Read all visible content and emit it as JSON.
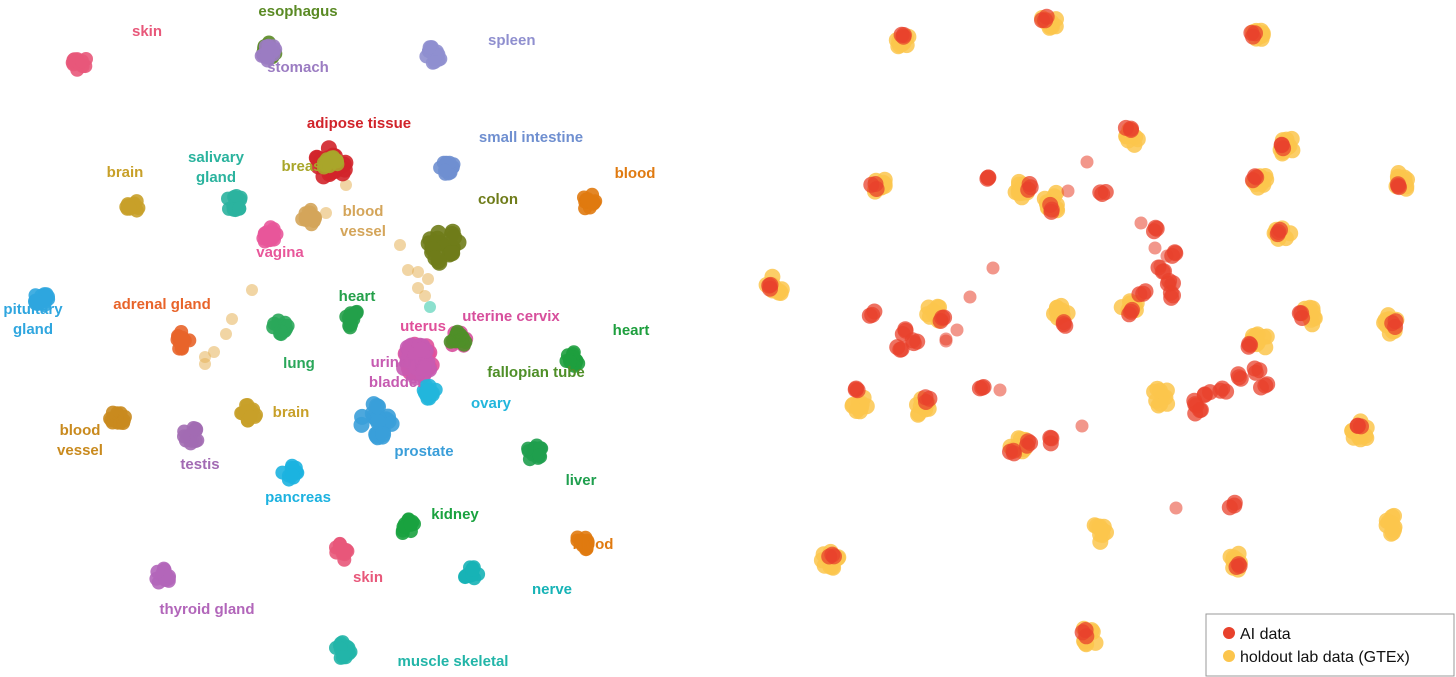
{
  "colors": {
    "ai": "#e8412c",
    "gtex": "#fcc54c"
  },
  "legend": {
    "items": [
      {
        "label": "AI data",
        "color": "#e8412c"
      },
      {
        "label": "holdout lab data (GTEx)",
        "color": "#fcc54c"
      }
    ]
  },
  "chart_data": [
    {
      "type": "scatter",
      "title": "",
      "xlabel": "",
      "ylabel": "",
      "axes_visible": false,
      "grid": false,
      "clusters": [
        {
          "name": "skin",
          "color": "#e8587a",
          "x": 0.098,
          "y": 0.917
        },
        {
          "name": "esophagus",
          "color": "#5a8a24",
          "x": 0.39,
          "y": 0.936
        },
        {
          "name": "stomach",
          "color": "#9b7cc2",
          "x": 0.39,
          "y": 0.931
        },
        {
          "name": "spleen",
          "color": "#8f8fcf",
          "x": 0.644,
          "y": 0.929
        },
        {
          "name": "adipose tissue",
          "color": "#d1232a",
          "x": 0.487,
          "y": 0.767
        },
        {
          "name": "breast",
          "color": "#a9a62a",
          "x": 0.487,
          "y": 0.762
        },
        {
          "name": "small intestine",
          "color": "#6f8fd0",
          "x": 0.666,
          "y": 0.761
        },
        {
          "name": "brain",
          "color": "#c8a029",
          "x": 0.18,
          "y": 0.702
        },
        {
          "name": "salivary gland",
          "color": "#2bb39e",
          "x": 0.338,
          "y": 0.705
        },
        {
          "name": "vagina",
          "color": "#e8579a",
          "x": 0.393,
          "y": 0.656
        },
        {
          "name": "blood",
          "color": "#e07a10",
          "x": 0.884,
          "y": 0.708
        },
        {
          "name": "colon",
          "color": "#6f7c1a",
          "x": 0.66,
          "y": 0.64
        },
        {
          "name": "blood vessel",
          "color": "#d4a55a",
          "x": 0.453,
          "y": 0.684
        },
        {
          "name": "pituitary gland",
          "color": "#2fa6df",
          "x": 0.04,
          "y": 0.562
        },
        {
          "name": "adrenal gland",
          "color": "#e8642a",
          "x": 0.256,
          "y": 0.499
        },
        {
          "name": "lung",
          "color": "#2aa75a",
          "x": 0.408,
          "y": 0.518
        },
        {
          "name": "heart",
          "color": "#24a04a",
          "x": 0.52,
          "y": 0.53
        },
        {
          "name": "uterus",
          "color": "#e0509a",
          "x": 0.62,
          "y": 0.468
        },
        {
          "name": "uterine cervix",
          "color": "#d74f9c",
          "x": 0.682,
          "y": 0.499
        },
        {
          "name": "heart",
          "color": "#1e9f3e",
          "x": 0.859,
          "y": 0.473
        },
        {
          "name": "urinary bladder",
          "color": "#c65bb1",
          "x": 0.62,
          "y": 0.468
        },
        {
          "name": "fallopian tube",
          "color": "#4f8f28",
          "x": 0.682,
          "y": 0.499
        },
        {
          "name": "ovary",
          "color": "#22b6dc",
          "x": 0.637,
          "y": 0.421
        },
        {
          "name": "brain",
          "color": "#c8a029",
          "x": 0.36,
          "y": 0.391
        },
        {
          "name": "blood vessel",
          "color": "#c98a1e",
          "x": 0.158,
          "y": 0.38
        },
        {
          "name": "testis",
          "color": "#a26bb3",
          "x": 0.271,
          "y": 0.356
        },
        {
          "name": "prostate",
          "color": "#3a9ed9",
          "x": 0.556,
          "y": 0.378
        },
        {
          "name": "liver",
          "color": "#1f9f4e",
          "x": 0.799,
          "y": 0.33
        },
        {
          "name": "pancreas",
          "color": "#1cb2e0",
          "x": 0.423,
          "y": 0.301
        },
        {
          "name": "kidney",
          "color": "#19a23f",
          "x": 0.604,
          "y": 0.218
        },
        {
          "name": "blood",
          "color": "#e07a10",
          "x": 0.874,
          "y": 0.196
        },
        {
          "name": "skin",
          "color": "#e8587a",
          "x": 0.503,
          "y": 0.181
        },
        {
          "name": "nerve",
          "color": "#17b3b6",
          "x": 0.703,
          "y": 0.145
        },
        {
          "name": "thyroid gland",
          "color": "#b266ba",
          "x": 0.227,
          "y": 0.143
        },
        {
          "name": "muscle skeletal",
          "color": "#22b5a8",
          "x": 0.505,
          "y": 0.032
        }
      ]
    },
    {
      "type": "scatter",
      "title": "",
      "xlabel": "",
      "ylabel": "",
      "axes_visible": false,
      "grid": false,
      "legend_position": "bottom-right",
      "series": [
        {
          "name": "holdout lab data (GTEx)",
          "color": "#fcc54c",
          "points": [
            {
              "x": 0.214,
              "y": 0.954
            },
            {
              "x": 0.442,
              "y": 0.976
            },
            {
              "x": 0.765,
              "y": 0.958
            },
            {
              "x": 0.572,
              "y": 0.806
            },
            {
              "x": 0.817,
              "y": 0.791
            },
            {
              "x": 0.179,
              "y": 0.73
            },
            {
              "x": 0.402,
              "y": 0.728
            },
            {
              "x": 0.449,
              "y": 0.707
            },
            {
              "x": 0.772,
              "y": 0.739
            },
            {
              "x": 0.807,
              "y": 0.659
            },
            {
              "x": 0.994,
              "y": 0.738
            },
            {
              "x": 0.015,
              "y": 0.58
            },
            {
              "x": 0.266,
              "y": 0.539
            },
            {
              "x": 0.461,
              "y": 0.542
            },
            {
              "x": 0.568,
              "y": 0.549
            },
            {
              "x": 0.773,
              "y": 0.497
            },
            {
              "x": 0.85,
              "y": 0.535
            },
            {
              "x": 0.975,
              "y": 0.522
            },
            {
              "x": 0.149,
              "y": 0.402
            },
            {
              "x": 0.247,
              "y": 0.397
            },
            {
              "x": 0.619,
              "y": 0.413
            },
            {
              "x": 0.395,
              "y": 0.344
            },
            {
              "x": 0.93,
              "y": 0.362
            },
            {
              "x": 0.525,
              "y": 0.21
            },
            {
              "x": 0.977,
              "y": 0.222
            },
            {
              "x": 0.102,
              "y": 0.168
            },
            {
              "x": 0.736,
              "y": 0.166
            },
            {
              "x": 0.505,
              "y": 0.052
            }
          ]
        },
        {
          "name": "AI data",
          "color": "#e8412c",
          "points": [
            {
              "x": 0.216,
              "y": 0.959
            },
            {
              "x": 0.437,
              "y": 0.981
            },
            {
              "x": 0.763,
              "y": 0.961
            },
            {
              "x": 0.57,
              "y": 0.818
            },
            {
              "x": 0.812,
              "y": 0.793
            },
            {
              "x": 0.171,
              "y": 0.73
            },
            {
              "x": 0.347,
              "y": 0.738
            },
            {
              "x": 0.415,
              "y": 0.728
            },
            {
              "x": 0.444,
              "y": 0.697
            },
            {
              "x": 0.528,
              "y": 0.722
            },
            {
              "x": 0.762,
              "y": 0.744
            },
            {
              "x": 0.8,
              "y": 0.663
            },
            {
              "x": 0.989,
              "y": 0.731
            },
            {
              "x": 0.607,
              "y": 0.668
            },
            {
              "x": 0.637,
              "y": 0.63
            },
            {
              "x": 0.619,
              "y": 0.607
            },
            {
              "x": 0.632,
              "y": 0.587
            },
            {
              "x": 0.635,
              "y": 0.566
            },
            {
              "x": 0.589,
              "y": 0.571
            },
            {
              "x": 0.008,
              "y": 0.582
            },
            {
              "x": 0.167,
              "y": 0.538
            },
            {
              "x": 0.233,
              "y": 0.497
            },
            {
              "x": 0.219,
              "y": 0.512
            },
            {
              "x": 0.208,
              "y": 0.485
            },
            {
              "x": 0.278,
              "y": 0.527
            },
            {
              "x": 0.467,
              "y": 0.526
            },
            {
              "x": 0.574,
              "y": 0.541
            },
            {
              "x": 0.758,
              "y": 0.489
            },
            {
              "x": 0.768,
              "y": 0.456
            },
            {
              "x": 0.779,
              "y": 0.432
            },
            {
              "x": 0.837,
              "y": 0.535
            },
            {
              "x": 0.141,
              "y": 0.42
            },
            {
              "x": 0.254,
              "y": 0.41
            },
            {
              "x": 0.341,
              "y": 0.424
            },
            {
              "x": 0.69,
              "y": 0.419
            },
            {
              "x": 0.716,
              "y": 0.425
            },
            {
              "x": 0.741,
              "y": 0.444
            },
            {
              "x": 0.668,
              "y": 0.402
            },
            {
              "x": 0.678,
              "y": 0.389
            },
            {
              "x": 0.929,
              "y": 0.37
            },
            {
              "x": 0.387,
              "y": 0.333
            },
            {
              "x": 0.409,
              "y": 0.341
            },
            {
              "x": 0.447,
              "y": 0.35
            },
            {
              "x": 0.732,
              "y": 0.25
            },
            {
              "x": 0.102,
              "y": 0.175
            },
            {
              "x": 0.736,
              "y": 0.16
            },
            {
              "x": 0.499,
              "y": 0.057
            },
            {
              "x": 0.982,
              "y": 0.524
            }
          ]
        }
      ]
    }
  ]
}
